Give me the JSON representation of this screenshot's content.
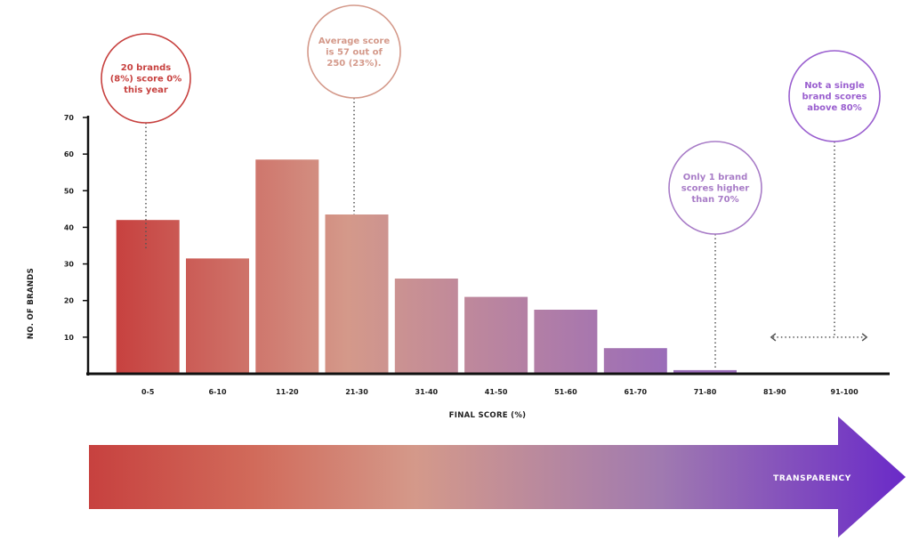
{
  "chart_data": {
    "type": "bar",
    "categories": [
      "0-5",
      "6-10",
      "11-20",
      "21-30",
      "31-40",
      "41-50",
      "51-60",
      "61-70",
      "71-80",
      "81-90",
      "91-100"
    ],
    "values": [
      42,
      31.5,
      58.5,
      43.5,
      26,
      21,
      17.5,
      7,
      1,
      0,
      0
    ],
    "xlabel": "FINAL SCORE (%)",
    "ylabel": "NO. OF BRANDS",
    "ylim": [
      0,
      70
    ],
    "yticks": [
      10,
      20,
      30,
      40,
      50,
      60,
      70
    ],
    "grid": false,
    "legend": "none",
    "colors": {
      "bar_start": "#c7413f",
      "bar_mid": "#d4998a",
      "bar_end": "#9a6cb9",
      "arrow_end": "#6a2ac8",
      "axis": "#111111"
    },
    "annotations": [
      {
        "lines": [
          "20 brands",
          "(8%) score 0%",
          "this year"
        ],
        "category": "0-5",
        "value": 34,
        "color": "#c7413f",
        "style": "dotted-line"
      },
      {
        "lines": [
          "Average score",
          "is 57 out of",
          "250 (23%)."
        ],
        "category": "21-30",
        "value": 43.5,
        "color": "#d4998a",
        "style": "dotted-line"
      },
      {
        "lines": [
          "Only 1 brand",
          "scores higher",
          "than 70%"
        ],
        "category": "71-80",
        "value": 1,
        "color": "#a87cc7",
        "style": "dotted-line"
      },
      {
        "lines": [
          "Not a single",
          "brand scores",
          "above 80%"
        ],
        "category": "91-100",
        "value": 10,
        "color": "#9a5fcf",
        "style": "range-arrow",
        "range": [
          "81-90",
          "91-100"
        ]
      }
    ]
  },
  "arrow": {
    "label": "TRANSPARENCY"
  }
}
